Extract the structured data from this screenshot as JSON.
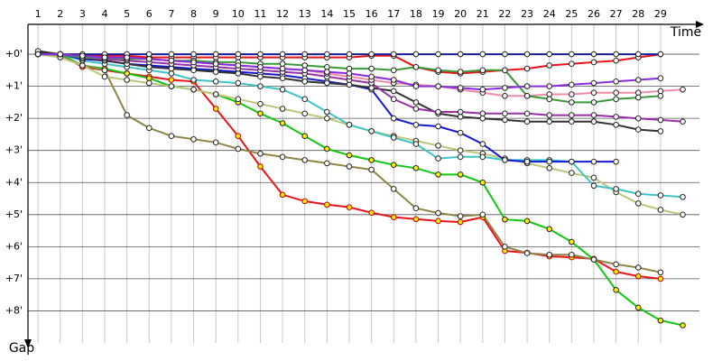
{
  "chart_data": {
    "type": "line",
    "x_label": "Time",
    "y_label": "Gap",
    "x": [
      1,
      2,
      3,
      4,
      5,
      6,
      7,
      8,
      9,
      10,
      11,
      12,
      13,
      14,
      15,
      16,
      17,
      18,
      19,
      20,
      21,
      22,
      23,
      24,
      25,
      26,
      27,
      28,
      29,
      30
    ],
    "xlim": [
      0.55,
      30.75
    ],
    "xticks": [
      1,
      2,
      3,
      4,
      5,
      6,
      7,
      8,
      9,
      10,
      11,
      12,
      13,
      14,
      15,
      16,
      17,
      18,
      19,
      20,
      21,
      22,
      23,
      24,
      25,
      26,
      27,
      28,
      29
    ],
    "ylim": [
      -0.93,
      9.0
    ],
    "yticks": [
      {
        "value": 0,
        "label": "+0'"
      },
      {
        "value": 1,
        "label": "+1'"
      },
      {
        "value": 2,
        "label": "+2'"
      },
      {
        "value": 3,
        "label": "+3'"
      },
      {
        "value": 4,
        "label": "+4'"
      },
      {
        "value": 5,
        "label": "+5'"
      },
      {
        "value": 6,
        "label": "+6'"
      },
      {
        "value": 7,
        "label": "+7'"
      },
      {
        "value": 8,
        "label": "+8'"
      }
    ],
    "grid": true,
    "series": [
      {
        "color": "#e8141a",
        "marker_fill": "#ffffff",
        "values": [
          0,
          0,
          0.05,
          0.05,
          0.05,
          0.1,
          0.1,
          0.1,
          0.1,
          0.1,
          0.1,
          0.1,
          0.1,
          0.1,
          0.1,
          0.05,
          0.05,
          0.4,
          0.55,
          0.6,
          0.55,
          0.5,
          0.45,
          0.35,
          0.3,
          0.25,
          0.2,
          0.1,
          0.0,
          null
        ]
      },
      {
        "color": "#1b1b9e",
        "marker_fill": "#ffffff",
        "values": [
          -0.05,
          0,
          0,
          0,
          0,
          0,
          0,
          0,
          0,
          0,
          0,
          0,
          0,
          0,
          0,
          0,
          0,
          0,
          0,
          0,
          0,
          0,
          0,
          0,
          0,
          0,
          0,
          0,
          0,
          null
        ]
      },
      {
        "color": "#e8141a",
        "marker_fill": "#ffee00",
        "values": [
          0,
          0,
          0.4,
          0.5,
          0.6,
          0.7,
          0.8,
          0.85,
          1.7,
          2.55,
          3.5,
          4.38,
          4.58,
          4.69,
          4.77,
          4.94,
          5.08,
          5.14,
          5.2,
          5.23,
          5.08,
          6.13,
          6.19,
          6.3,
          6.33,
          6.38,
          6.78,
          6.92,
          7.0,
          null
        ]
      },
      {
        "color": "#11c711",
        "marker_fill": "#ffee00",
        "values": [
          0,
          0,
          0.35,
          0.45,
          0.6,
          0.75,
          1.0,
          1.1,
          1.25,
          1.5,
          1.85,
          2.15,
          2.55,
          2.95,
          3.15,
          3.3,
          3.45,
          3.55,
          3.75,
          3.75,
          4.0,
          5.15,
          5.2,
          5.45,
          5.85,
          6.4,
          7.35,
          7.9,
          8.3,
          8.45
        ]
      },
      {
        "color": "#8f8446",
        "marker_fill": "#ffffff",
        "values": [
          0,
          0.05,
          0.35,
          0.5,
          1.9,
          2.3,
          2.55,
          2.65,
          2.75,
          2.95,
          3.1,
          3.2,
          3.3,
          3.4,
          3.5,
          3.6,
          4.2,
          4.8,
          4.95,
          5.05,
          5.0,
          6.0,
          6.2,
          6.25,
          6.25,
          6.4,
          6.55,
          6.65,
          6.8,
          null
        ]
      },
      {
        "color": "#b8c77c",
        "marker_fill": "#ffffff",
        "values": [
          0,
          0.1,
          0.35,
          0.7,
          0.8,
          0.9,
          1.0,
          1.1,
          1.25,
          1.4,
          1.55,
          1.7,
          1.85,
          2.0,
          2.2,
          2.4,
          2.55,
          2.7,
          2.85,
          3.0,
          3.1,
          3.25,
          3.4,
          3.55,
          3.7,
          3.85,
          4.3,
          4.65,
          4.85,
          5.0
        ]
      },
      {
        "color": "#3fc4c4",
        "marker_fill": "#ffffff",
        "values": [
          0,
          0,
          0.2,
          0.3,
          0.4,
          0.5,
          0.6,
          0.8,
          0.85,
          0.9,
          1.0,
          1.1,
          1.4,
          1.8,
          2.2,
          2.4,
          2.6,
          2.8,
          3.25,
          3.2,
          3.2,
          3.3,
          3.3,
          3.3,
          3.35,
          4.1,
          4.2,
          4.35,
          4.4,
          4.45
        ]
      },
      {
        "color": "#1418d4",
        "marker_fill": "#ffffff",
        "values": [
          0,
          0,
          0.15,
          0.2,
          0.3,
          0.35,
          0.4,
          0.45,
          0.5,
          0.55,
          0.6,
          0.65,
          0.75,
          0.85,
          0.95,
          1.1,
          2.0,
          2.2,
          2.25,
          2.45,
          2.8,
          3.3,
          3.35,
          3.35,
          3.35,
          3.35,
          3.35,
          null,
          null,
          null
        ]
      },
      {
        "color": "#333333",
        "marker_fill": "#ffffff",
        "values": [
          -0.1,
          0,
          0.1,
          0.2,
          0.3,
          0.4,
          0.45,
          0.5,
          0.55,
          0.6,
          0.7,
          0.75,
          0.85,
          0.9,
          0.95,
          1.05,
          1.15,
          1.5,
          1.85,
          1.95,
          2.0,
          2.05,
          2.1,
          2.1,
          2.1,
          2.1,
          2.2,
          2.35,
          2.4,
          null
        ]
      },
      {
        "color": "#9a2fa8",
        "marker_fill": "#ffffff",
        "values": [
          0,
          0,
          0.1,
          0.15,
          0.2,
          0.25,
          0.3,
          0.35,
          0.4,
          0.45,
          0.5,
          0.55,
          0.6,
          0.7,
          0.8,
          0.9,
          1.4,
          1.7,
          1.8,
          1.8,
          1.85,
          1.85,
          1.85,
          1.9,
          1.9,
          1.9,
          1.95,
          2.0,
          2.05,
          2.1
        ]
      },
      {
        "color": "#f08ca8",
        "marker_fill": "#ffffff",
        "values": [
          0,
          0,
          0.1,
          0.1,
          0.15,
          0.15,
          0.2,
          0.25,
          0.3,
          0.35,
          0.4,
          0.45,
          0.5,
          0.6,
          0.7,
          0.8,
          0.9,
          0.95,
          1.0,
          1.1,
          1.2,
          1.3,
          1.3,
          1.25,
          1.25,
          1.2,
          1.2,
          1.2,
          1.15,
          1.1
        ]
      },
      {
        "color": "#3a9a3a",
        "marker_fill": "#ffffff",
        "values": [
          0,
          0,
          0.1,
          0.1,
          0.15,
          0.15,
          0.2,
          0.2,
          0.25,
          0.25,
          0.3,
          0.3,
          0.35,
          0.4,
          0.45,
          0.45,
          0.5,
          0.4,
          0.5,
          0.55,
          0.5,
          0.5,
          1.3,
          1.4,
          1.5,
          1.5,
          1.4,
          1.35,
          1.3,
          null
        ]
      },
      {
        "color": "#8a2be2",
        "marker_fill": "#ffffff",
        "values": [
          0,
          0,
          0.05,
          0.1,
          0.1,
          0.15,
          0.2,
          0.25,
          0.3,
          0.35,
          0.4,
          0.45,
          0.5,
          0.55,
          0.6,
          0.7,
          0.8,
          1.0,
          1.0,
          1.05,
          1.1,
          1.05,
          1.0,
          1.0,
          0.95,
          0.9,
          0.85,
          0.8,
          0.75,
          null
        ]
      }
    ]
  }
}
